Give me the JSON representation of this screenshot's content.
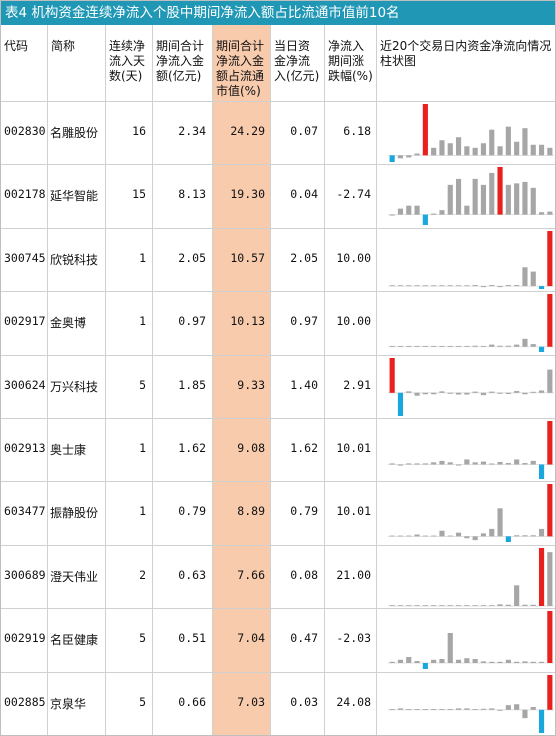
{
  "title": "表4 机构资金连续净流入个股中期间净流入额占比流通市值前10名",
  "columns": [
    "代码",
    "简称",
    "连续净流入天数(天)",
    "期间合计净流入金额(亿元)",
    "期间合计净流入金额占流通市值(%)",
    "当日资金净流入(亿元)",
    "净流入期间涨跌幅(%)",
    "近20个交易日内资金净流向情况柱状图"
  ],
  "colors": {
    "title_bg": "#1f97b5",
    "highlight": "#f8cbad",
    "bar_max": "#e8201e",
    "bar_min": "#1aa7dd",
    "bar_neutral": "#a6a6a6"
  },
  "rows": [
    {
      "code": "002830",
      "name": "名雕股份",
      "days": "16",
      "amount": "2.34",
      "ratio": "24.29",
      "today": "0.07",
      "change": "6.18",
      "bars": [
        -2.2,
        -1,
        -0.7,
        0.6,
        17,
        2.5,
        5,
        4,
        6,
        3,
        2.5,
        4,
        8.5,
        3,
        9.5,
        4.5,
        9,
        3.5,
        3.5,
        2.5
      ]
    },
    {
      "code": "002178",
      "name": "延华智能",
      "days": "15",
      "amount": "8.13",
      "ratio": "19.30",
      "today": "0.04",
      "change": "-2.74",
      "bars": [
        -0.3,
        2,
        3,
        3,
        -3.5,
        0.3,
        1.5,
        10,
        12,
        3,
        12,
        10,
        14,
        16,
        10,
        10.5,
        11,
        9,
        0.8,
        1
      ]
    },
    {
      "code": "300745",
      "name": "欣锐科技",
      "days": "1",
      "amount": "2.05",
      "ratio": "10.57",
      "today": "2.05",
      "change": "10.00",
      "bars": [
        0,
        0,
        0,
        0,
        0,
        0,
        0,
        0,
        0,
        0,
        0.3,
        -0.3,
        0.3,
        -0.3,
        0.3,
        0.3,
        6.5,
        5,
        -1,
        19
      ]
    },
    {
      "code": "002917",
      "name": "金奥博",
      "days": "1",
      "amount": "0.97",
      "ratio": "10.13",
      "today": "0.97",
      "change": "10.00",
      "bars": [
        0,
        0,
        0,
        0,
        0,
        0,
        0,
        0,
        0,
        0,
        0.3,
        0,
        0.8,
        0.3,
        0.3,
        0.8,
        3,
        1,
        -2,
        20
      ]
    },
    {
      "code": "300624",
      "name": "万兴科技",
      "days": "5",
      "amount": "1.85",
      "ratio": "9.33",
      "today": "1.40",
      "change": "2.91",
      "bars": [
        12,
        -8,
        0.5,
        -1,
        -0.5,
        -0.5,
        0.5,
        -0.3,
        -0.6,
        -0.6,
        0.4,
        -0.8,
        0.4,
        -0.3,
        -0.4,
        0.6,
        -0.5,
        0.3,
        0.8,
        8
      ]
    },
    {
      "code": "002913",
      "name": "奥士康",
      "days": "1",
      "amount": "1.62",
      "ratio": "9.08",
      "today": "1.62",
      "change": "10.01",
      "bars": [
        0.3,
        -0.3,
        0.3,
        0.3,
        0.3,
        0.6,
        1,
        0.6,
        -0.2,
        1.4,
        0.6,
        0.8,
        0.2,
        0.7,
        0.4,
        1.4,
        0.4,
        1,
        -4,
        12
      ]
    },
    {
      "code": "603477",
      "name": "振静股份",
      "days": "1",
      "amount": "0.79",
      "ratio": "8.89",
      "today": "0.79",
      "change": "10.01",
      "bars": [
        0,
        0,
        0,
        0.5,
        0,
        0,
        1.5,
        0,
        1,
        -0.5,
        -1,
        0.8,
        2,
        7.5,
        -1.5,
        0.3,
        0.3,
        0.3,
        2,
        14
      ]
    },
    {
      "code": "300689",
      "name": "澄天伟业",
      "days": "2",
      "amount": "0.63",
      "ratio": "7.66",
      "today": "0.08",
      "change": "21.00",
      "bars": [
        0,
        0,
        0,
        0,
        0,
        0,
        0,
        0,
        0,
        0,
        0,
        0,
        0,
        0.4,
        0.3,
        5,
        0.3,
        0.3,
        14,
        13
      ]
    },
    {
      "code": "002919",
      "name": "名臣健康",
      "days": "5",
      "amount": "0.51",
      "ratio": "7.04",
      "today": "0.47",
      "change": "-2.03",
      "bars": [
        0.3,
        0.8,
        1.5,
        0.5,
        -1.5,
        0.8,
        1,
        7.5,
        0.8,
        1.2,
        1,
        0.4,
        0.3,
        0.3,
        0.8,
        0.3,
        0.4,
        0.3,
        0.3,
        13
      ]
    },
    {
      "code": "002885",
      "name": "京泉华",
      "days": "5",
      "amount": "0.66",
      "ratio": "7.03",
      "today": "0.03",
      "change": "24.08",
      "bars": [
        0,
        0.3,
        0,
        0,
        0,
        0,
        0,
        0,
        0.3,
        0.3,
        0,
        0.2,
        0.3,
        -0.2,
        1,
        1.2,
        -1.8,
        0.6,
        -5,
        7.5
      ]
    }
  ]
}
